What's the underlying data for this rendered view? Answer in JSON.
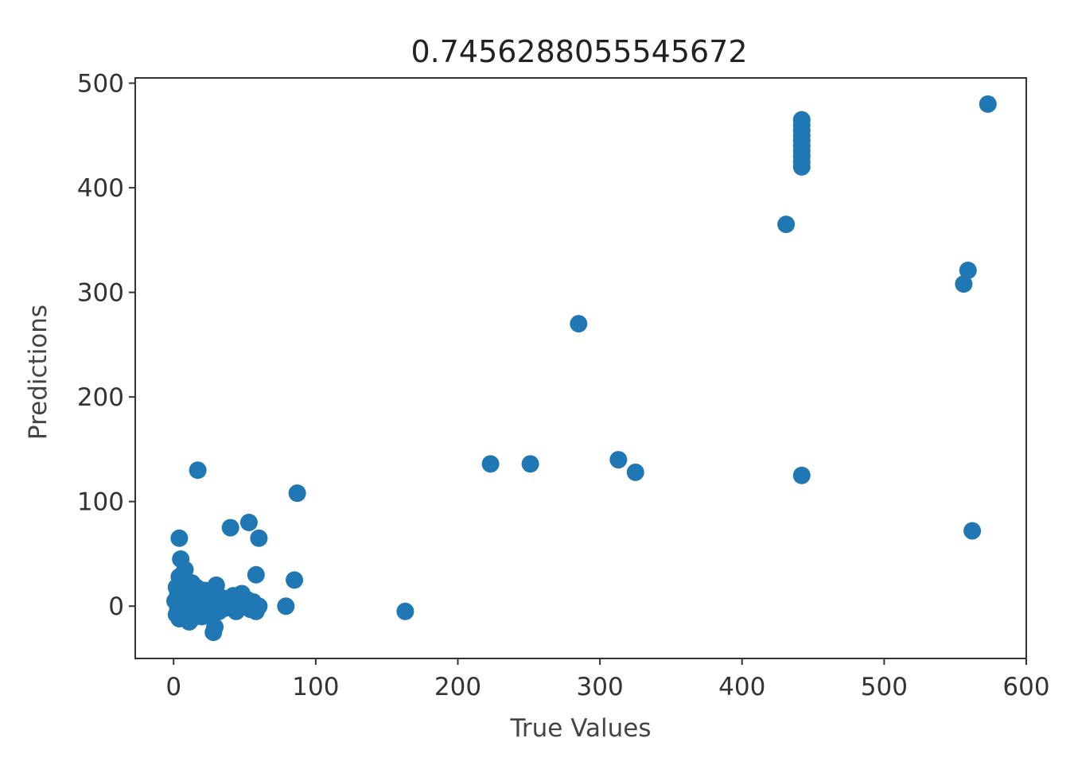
{
  "chart_data": {
    "type": "scatter",
    "title": "0.7456288055545672",
    "xlabel": "True Values",
    "ylabel": "Predictions",
    "xlim": [
      -27,
      600
    ],
    "ylim": [
      -50,
      505
    ],
    "xticks": [
      0,
      100,
      200,
      300,
      400,
      500,
      600
    ],
    "yticks": [
      0,
      100,
      200,
      300,
      400,
      500
    ],
    "grid": false,
    "marker_color": "#1f77b4",
    "points": [
      [
        1,
        5
      ],
      [
        2,
        -8
      ],
      [
        3,
        12
      ],
      [
        4,
        -12
      ],
      [
        5,
        20
      ],
      [
        5,
        0
      ],
      [
        6,
        30
      ],
      [
        7,
        -5
      ],
      [
        8,
        15
      ],
      [
        9,
        25
      ],
      [
        10,
        2
      ],
      [
        11,
        -15
      ],
      [
        12,
        10
      ],
      [
        13,
        22
      ],
      [
        14,
        -8
      ],
      [
        15,
        5
      ],
      [
        16,
        18
      ],
      [
        17,
        -3
      ],
      [
        18,
        12
      ],
      [
        19,
        0
      ],
      [
        20,
        -10
      ],
      [
        21,
        8
      ],
      [
        22,
        15
      ],
      [
        23,
        -5
      ],
      [
        24,
        3
      ],
      [
        25,
        10
      ],
      [
        26,
        -8
      ],
      [
        27,
        6
      ],
      [
        28,
        -25
      ],
      [
        29,
        -20
      ],
      [
        30,
        20
      ],
      [
        31,
        0
      ],
      [
        32,
        -5
      ],
      [
        34,
        8
      ],
      [
        36,
        -2
      ],
      [
        38,
        5
      ],
      [
        40,
        0
      ],
      [
        42,
        10
      ],
      [
        44,
        -5
      ],
      [
        46,
        2
      ],
      [
        48,
        12
      ],
      [
        50,
        0
      ],
      [
        52,
        6
      ],
      [
        54,
        -3
      ],
      [
        56,
        4
      ],
      [
        58,
        -5
      ],
      [
        60,
        0
      ],
      [
        3,
        -2
      ],
      [
        6,
        8
      ],
      [
        9,
        -6
      ],
      [
        12,
        3
      ],
      [
        15,
        -10
      ],
      [
        18,
        5
      ],
      [
        21,
        -2
      ],
      [
        24,
        12
      ],
      [
        2,
        18
      ],
      [
        4,
        28
      ],
      [
        8,
        35
      ],
      [
        10,
        20
      ],
      [
        13,
        -12
      ],
      [
        16,
        0
      ],
      [
        19,
        8
      ],
      [
        22,
        -4
      ],
      [
        5,
        45
      ],
      [
        4,
        65
      ],
      [
        17,
        130
      ],
      [
        40,
        75
      ],
      [
        53,
        80
      ],
      [
        60,
        65
      ],
      [
        58,
        30
      ],
      [
        85,
        25
      ],
      [
        79,
        0
      ],
      [
        87,
        108
      ],
      [
        163,
        -5
      ],
      [
        223,
        136
      ],
      [
        251,
        136
      ],
      [
        285,
        270
      ],
      [
        313,
        140
      ],
      [
        325,
        128
      ],
      [
        431,
        365
      ],
      [
        442,
        125
      ],
      [
        442,
        420
      ],
      [
        442,
        425
      ],
      [
        442,
        430
      ],
      [
        442,
        435
      ],
      [
        442,
        440
      ],
      [
        442,
        445
      ],
      [
        442,
        450
      ],
      [
        442,
        455
      ],
      [
        442,
        460
      ],
      [
        442,
        465
      ],
      [
        556,
        308
      ],
      [
        559,
        321
      ],
      [
        562,
        72
      ],
      [
        573,
        480
      ]
    ]
  }
}
